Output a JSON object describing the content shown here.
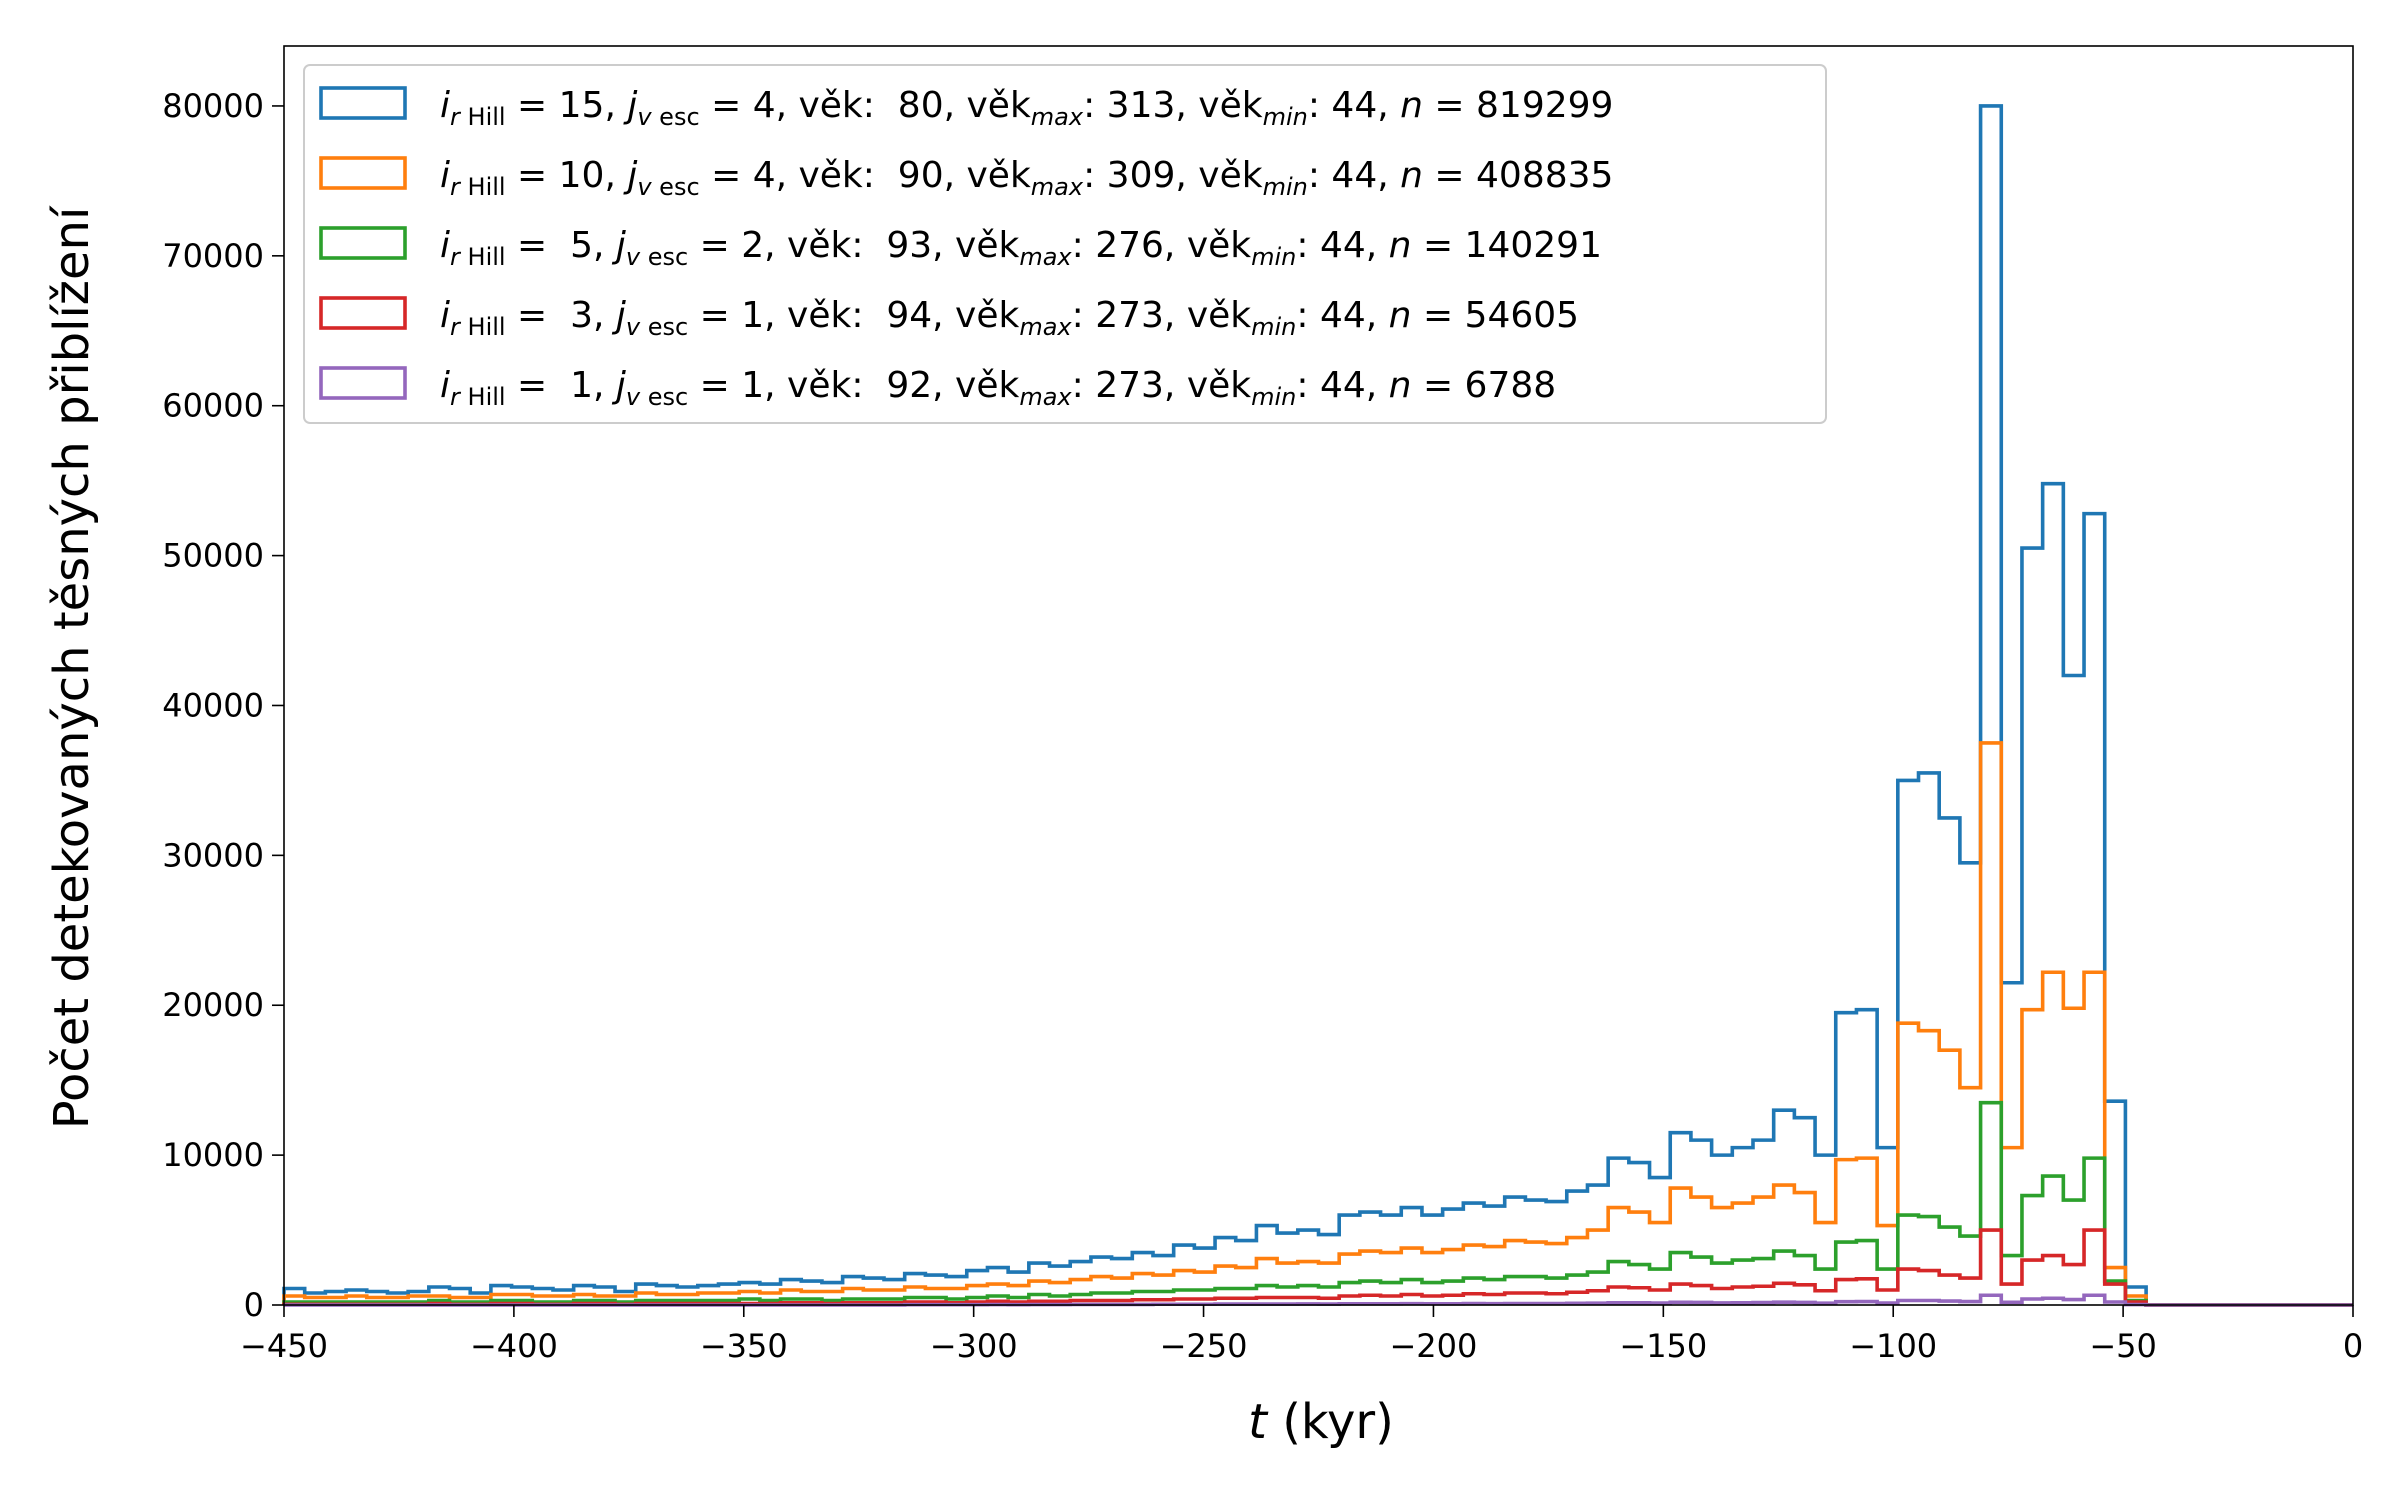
{
  "chart_data": {
    "type": "histogram",
    "xlabel_var": "t",
    "xlabel_unit": " (kyr)",
    "ylabel": "Počet detekovaných těsných přiblížení",
    "xlim": [
      -450,
      0
    ],
    "ylim": [
      0,
      84000
    ],
    "xticks": [
      -450,
      -400,
      -350,
      -300,
      -250,
      -200,
      -150,
      -100,
      -50,
      0
    ],
    "yticks": [
      0,
      10000,
      20000,
      30000,
      40000,
      50000,
      60000,
      70000,
      80000
    ],
    "grid": false,
    "legend_position": "top-left",
    "bin_width": 4.5,
    "bins_start": -450,
    "series": [
      {
        "legend": {
          "i": "15",
          "j": "4",
          "vek": "80",
          "vekmax": "313",
          "vekmin": "44",
          "n": "819299"
        },
        "color": "#1f77b4",
        "values": [
          1100,
          800,
          900,
          1000,
          900,
          800,
          900,
          1200,
          1100,
          800,
          1300,
          1200,
          1100,
          1000,
          1300,
          1200,
          900,
          1400,
          1300,
          1200,
          1300,
          1400,
          1500,
          1400,
          1700,
          1600,
          1500,
          1900,
          1800,
          1700,
          2100,
          2000,
          1900,
          2300,
          2500,
          2200,
          2800,
          2600,
          2900,
          3200,
          3100,
          3500,
          3300,
          4000,
          3800,
          4500,
          4300,
          5300,
          4800,
          5000,
          4700,
          6000,
          6200,
          6000,
          6500,
          6000,
          6400,
          6800,
          6600,
          7200,
          7000,
          6900,
          7600,
          8000,
          9800,
          9500,
          8500,
          11500,
          11000,
          10000,
          10500,
          11000,
          13000,
          12500,
          10000,
          19500,
          19700,
          10500,
          35000,
          35500,
          32500,
          29500,
          80000,
          21500,
          50500,
          54800,
          42000,
          52800,
          13600,
          1200,
          0,
          0,
          0,
          0,
          0,
          0,
          0,
          0,
          0,
          0
        ]
      },
      {
        "legend": {
          "i": "10",
          "j": "4",
          "vek": "90",
          "vekmax": "309",
          "vekmin": "44",
          "n": "408835"
        },
        "color": "#ff7f0e",
        "values": [
          600,
          500,
          500,
          600,
          500,
          500,
          600,
          600,
          500,
          500,
          700,
          700,
          600,
          600,
          700,
          600,
          600,
          800,
          700,
          700,
          800,
          800,
          900,
          800,
          1000,
          900,
          900,
          1100,
          1000,
          1000,
          1200,
          1100,
          1100,
          1300,
          1400,
          1300,
          1600,
          1500,
          1700,
          1900,
          1800,
          2100,
          2000,
          2300,
          2200,
          2600,
          2500,
          3100,
          2800,
          2900,
          2800,
          3400,
          3600,
          3500,
          3800,
          3500,
          3700,
          4000,
          3900,
          4300,
          4200,
          4100,
          4500,
          5000,
          6500,
          6200,
          5500,
          7800,
          7200,
          6500,
          6800,
          7200,
          8000,
          7500,
          5500,
          9700,
          9800,
          5300,
          18800,
          18300,
          17000,
          14500,
          37500,
          10500,
          19700,
          22200,
          19800,
          22200,
          2500,
          600,
          0,
          0,
          0,
          0,
          0,
          0,
          0,
          0,
          0,
          0
        ]
      },
      {
        "legend": {
          "i": "5",
          "j": "2",
          "vek": "93",
          "vekmax": "276",
          "vekmin": "44",
          "n": "140291"
        },
        "color": "#2ca02c",
        "values": [
          200,
          200,
          200,
          200,
          200,
          200,
          200,
          300,
          200,
          200,
          300,
          300,
          200,
          200,
          300,
          300,
          200,
          300,
          300,
          300,
          300,
          300,
          400,
          300,
          400,
          400,
          300,
          400,
          400,
          400,
          500,
          500,
          400,
          500,
          600,
          500,
          700,
          600,
          700,
          800,
          800,
          900,
          900,
          1000,
          1000,
          1100,
          1100,
          1300,
          1200,
          1300,
          1200,
          1500,
          1600,
          1500,
          1700,
          1500,
          1600,
          1800,
          1700,
          1900,
          1900,
          1800,
          2000,
          2200,
          2900,
          2700,
          2400,
          3500,
          3200,
          2800,
          3000,
          3100,
          3600,
          3300,
          2400,
          4200,
          4300,
          2400,
          6000,
          5900,
          5200,
          4600,
          13500,
          3300,
          7300,
          8600,
          7000,
          9800,
          1600,
          300,
          0,
          0,
          0,
          0,
          0,
          0,
          0,
          0,
          0,
          0
        ]
      },
      {
        "legend": {
          "i": "3",
          "j": "1",
          "vek": "94",
          "vekmax": "273",
          "vekmin": "44",
          "n": "54605"
        },
        "color": "#d62728",
        "values": [
          50,
          50,
          50,
          50,
          50,
          50,
          50,
          100,
          50,
          50,
          100,
          100,
          50,
          50,
          100,
          100,
          50,
          100,
          100,
          100,
          100,
          100,
          100,
          100,
          150,
          150,
          100,
          150,
          150,
          150,
          200,
          200,
          150,
          200,
          250,
          200,
          250,
          250,
          300,
          300,
          300,
          350,
          350,
          400,
          400,
          450,
          450,
          500,
          500,
          500,
          450,
          600,
          650,
          600,
          700,
          600,
          650,
          750,
          700,
          800,
          800,
          750,
          850,
          950,
          1200,
          1150,
          1000,
          1400,
          1300,
          1100,
          1200,
          1250,
          1450,
          1350,
          950,
          1700,
          1750,
          1000,
          2400,
          2300,
          2000,
          1800,
          5000,
          1400,
          3000,
          3300,
          2700,
          5000,
          1400,
          200,
          0,
          0,
          0,
          0,
          0,
          0,
          0,
          0,
          0,
          0
        ]
      },
      {
        "legend": {
          "i": "1",
          "j": "1",
          "vek": "92",
          "vekmax": "273",
          "vekmin": "44",
          "n": "6788"
        },
        "color": "#9467bd",
        "values": [
          0,
          0,
          0,
          0,
          0,
          0,
          0,
          0,
          0,
          0,
          0,
          0,
          0,
          0,
          0,
          0,
          0,
          0,
          0,
          0,
          0,
          0,
          0,
          0,
          0,
          0,
          0,
          0,
          0,
          0,
          20,
          20,
          20,
          20,
          30,
          20,
          30,
          30,
          40,
          40,
          40,
          40,
          50,
          50,
          50,
          60,
          60,
          60,
          60,
          70,
          60,
          80,
          80,
          80,
          90,
          80,
          80,
          100,
          90,
          100,
          100,
          100,
          110,
          120,
          150,
          150,
          130,
          180,
          170,
          140,
          150,
          160,
          190,
          170,
          120,
          220,
          230,
          130,
          300,
          300,
          260,
          230,
          650,
          180,
          400,
          450,
          360,
          650,
          200,
          30,
          0,
          0,
          0,
          0,
          0,
          0,
          0,
          0,
          0,
          0
        ]
      }
    ]
  }
}
